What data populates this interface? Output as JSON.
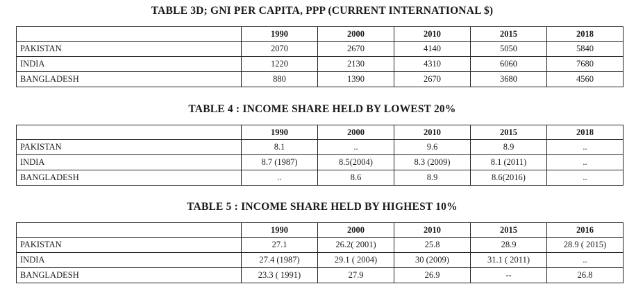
{
  "tables": [
    {
      "title": "TABLE 3D;  GNI PER CAPITA, PPP (CURRENT INTERNATIONAL $)",
      "columns": [
        "1990",
        "2000",
        "2010",
        "2015",
        "2018"
      ],
      "rows": [
        {
          "country": "PAKISTAN",
          "values": [
            "2070",
            "2670",
            "4140",
            "5050",
            "5840"
          ]
        },
        {
          "country": "INDIA",
          "values": [
            "1220",
            "2130",
            "4310",
            "6060",
            "7680"
          ]
        },
        {
          "country": "BANGLADESH",
          "values": [
            "880",
            "1390",
            "2670",
            "3680",
            "4560"
          ]
        }
      ]
    },
    {
      "title": "TABLE 4 : INCOME SHARE HELD BY LOWEST 20%",
      "columns": [
        "1990",
        "2000",
        "2010",
        "2015",
        "2018"
      ],
      "rows": [
        {
          "country": "PAKISTAN",
          "values": [
            "8.1",
            "..",
            "9.6",
            "8.9",
            ".."
          ]
        },
        {
          "country": "INDIA",
          "values": [
            "8.7 (1987)",
            "8.5(2004)",
            "8.3 (2009)",
            "8.1 (2011)",
            ".."
          ]
        },
        {
          "country": "BANGLADESH",
          "values": [
            "..",
            "8.6",
            "8.9",
            "8.6(2016)",
            ".."
          ]
        }
      ]
    },
    {
      "title": "TABLE 5 : INCOME SHARE HELD BY HIGHEST 10%",
      "columns": [
        "1990",
        "2000",
        "2010",
        "2015",
        "2016"
      ],
      "rows": [
        {
          "country": "PAKISTAN",
          "values": [
            "27.1",
            "26.2( 2001)",
            "25.8",
            "28.9",
            "28.9 ( 2015)"
          ]
        },
        {
          "country": "INDIA",
          "values": [
            "27.4 (1987)",
            "29.1 ( 2004)",
            "30 (2009)",
            "31.1 ( 2011)",
            ".."
          ]
        },
        {
          "country": "BANGLADESH",
          "values": [
            "23.3 ( 1991)",
            "27.9",
            "26.9",
            "--",
            "26.8"
          ]
        }
      ]
    }
  ]
}
